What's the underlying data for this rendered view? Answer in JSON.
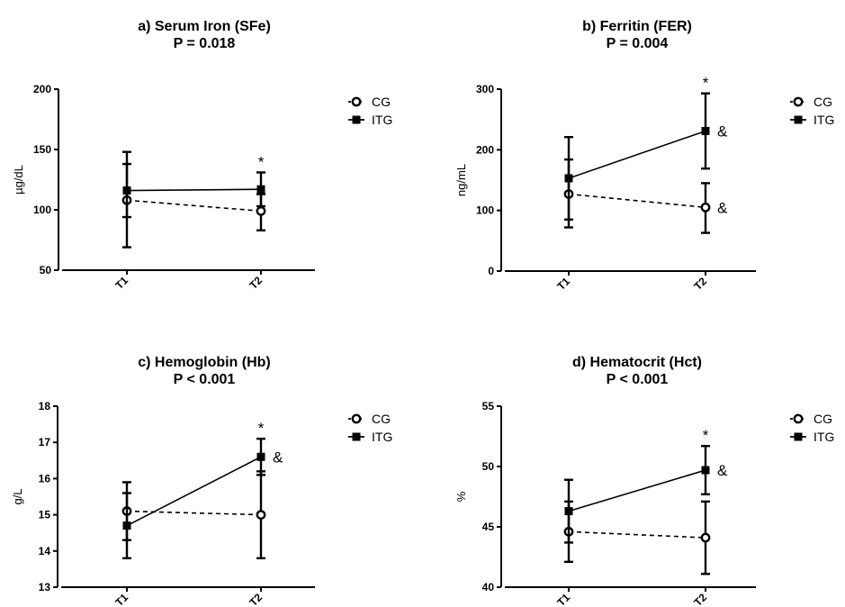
{
  "figure": {
    "legend_labels": [
      "CG",
      "ITG"
    ]
  },
  "chart_data": [
    {
      "type": "line",
      "title": "a) Serum Iron (SFe)",
      "subtitle": "P = 0.018",
      "ylabel": "µg/dL",
      "xlabel": "",
      "categories": [
        "T1",
        "T2"
      ],
      "ylim": [
        50,
        200
      ],
      "yticks": [
        50,
        100,
        150,
        200
      ],
      "legend_position": "right",
      "grid": false,
      "series": [
        {
          "name": "CG",
          "style": "dashed",
          "marker": "open-circle",
          "values": [
            108,
            99
          ],
          "error_low": [
            69,
            83
          ],
          "error_high": [
            148,
            113
          ]
        },
        {
          "name": "ITG",
          "style": "solid",
          "marker": "filled-square",
          "values": [
            116,
            117
          ],
          "error_low": [
            94,
            103
          ],
          "error_high": [
            138,
            131
          ]
        }
      ],
      "annotations": [
        {
          "text": "*",
          "at": "T2",
          "placement": "above"
        }
      ]
    },
    {
      "type": "line",
      "title": "b) Ferritin (FER)",
      "subtitle": "P = 0.004",
      "ylabel": "ng/mL",
      "xlabel": "",
      "categories": [
        "T1",
        "T2"
      ],
      "ylim": [
        0,
        300
      ],
      "yticks": [
        0,
        100,
        200,
        300
      ],
      "legend_position": "right",
      "grid": false,
      "series": [
        {
          "name": "CG",
          "style": "dashed",
          "marker": "open-circle",
          "values": [
            127,
            105
          ],
          "error_low": [
            72,
            63
          ],
          "error_high": [
            184,
            145
          ]
        },
        {
          "name": "ITG",
          "style": "solid",
          "marker": "filled-square",
          "values": [
            153,
            231
          ],
          "error_low": [
            85,
            169
          ],
          "error_high": [
            221,
            293
          ]
        }
      ],
      "annotations": [
        {
          "text": "*",
          "at": "T2",
          "placement": "above"
        },
        {
          "text": "&",
          "at": "T2",
          "series": "ITG"
        },
        {
          "text": "&",
          "at": "T2",
          "series": "CG"
        }
      ]
    },
    {
      "type": "line",
      "title": "c) Hemoglobin (Hb)",
      "subtitle": "P < 0.001",
      "ylabel": "g/L",
      "xlabel": "",
      "categories": [
        "T1",
        "T2"
      ],
      "ylim": [
        13,
        18
      ],
      "yticks": [
        13,
        14,
        15,
        16,
        17,
        18
      ],
      "legend_position": "right",
      "grid": false,
      "series": [
        {
          "name": "CG",
          "style": "dashed",
          "marker": "open-circle",
          "values": [
            15.1,
            15.0
          ],
          "error_low": [
            14.3,
            13.8
          ],
          "error_high": [
            15.9,
            16.2
          ]
        },
        {
          "name": "ITG",
          "style": "solid",
          "marker": "filled-square",
          "values": [
            14.7,
            16.6
          ],
          "error_low": [
            13.8,
            16.1
          ],
          "error_high": [
            15.6,
            17.1
          ]
        }
      ],
      "annotations": [
        {
          "text": "*",
          "at": "T2",
          "placement": "above"
        },
        {
          "text": "&",
          "at": "T2",
          "series": "ITG"
        }
      ]
    },
    {
      "type": "line",
      "title": "d) Hematocrit (Hct)",
      "subtitle": "P < 0.001",
      "ylabel": "%",
      "xlabel": "",
      "categories": [
        "T1",
        "T2"
      ],
      "ylim": [
        40,
        55
      ],
      "yticks": [
        40,
        45,
        50,
        55
      ],
      "legend_position": "right",
      "grid": false,
      "series": [
        {
          "name": "CG",
          "style": "dashed",
          "marker": "open-circle",
          "values": [
            44.6,
            44.1
          ],
          "error_low": [
            42.1,
            41.1
          ],
          "error_high": [
            47.1,
            47.1
          ]
        },
        {
          "name": "ITG",
          "style": "solid",
          "marker": "filled-square",
          "values": [
            46.3,
            49.7
          ],
          "error_low": [
            43.7,
            47.7
          ],
          "error_high": [
            48.9,
            51.7
          ]
        }
      ],
      "annotations": [
        {
          "text": "*",
          "at": "T2",
          "placement": "above"
        },
        {
          "text": "&",
          "at": "T2",
          "series": "ITG"
        }
      ]
    }
  ]
}
